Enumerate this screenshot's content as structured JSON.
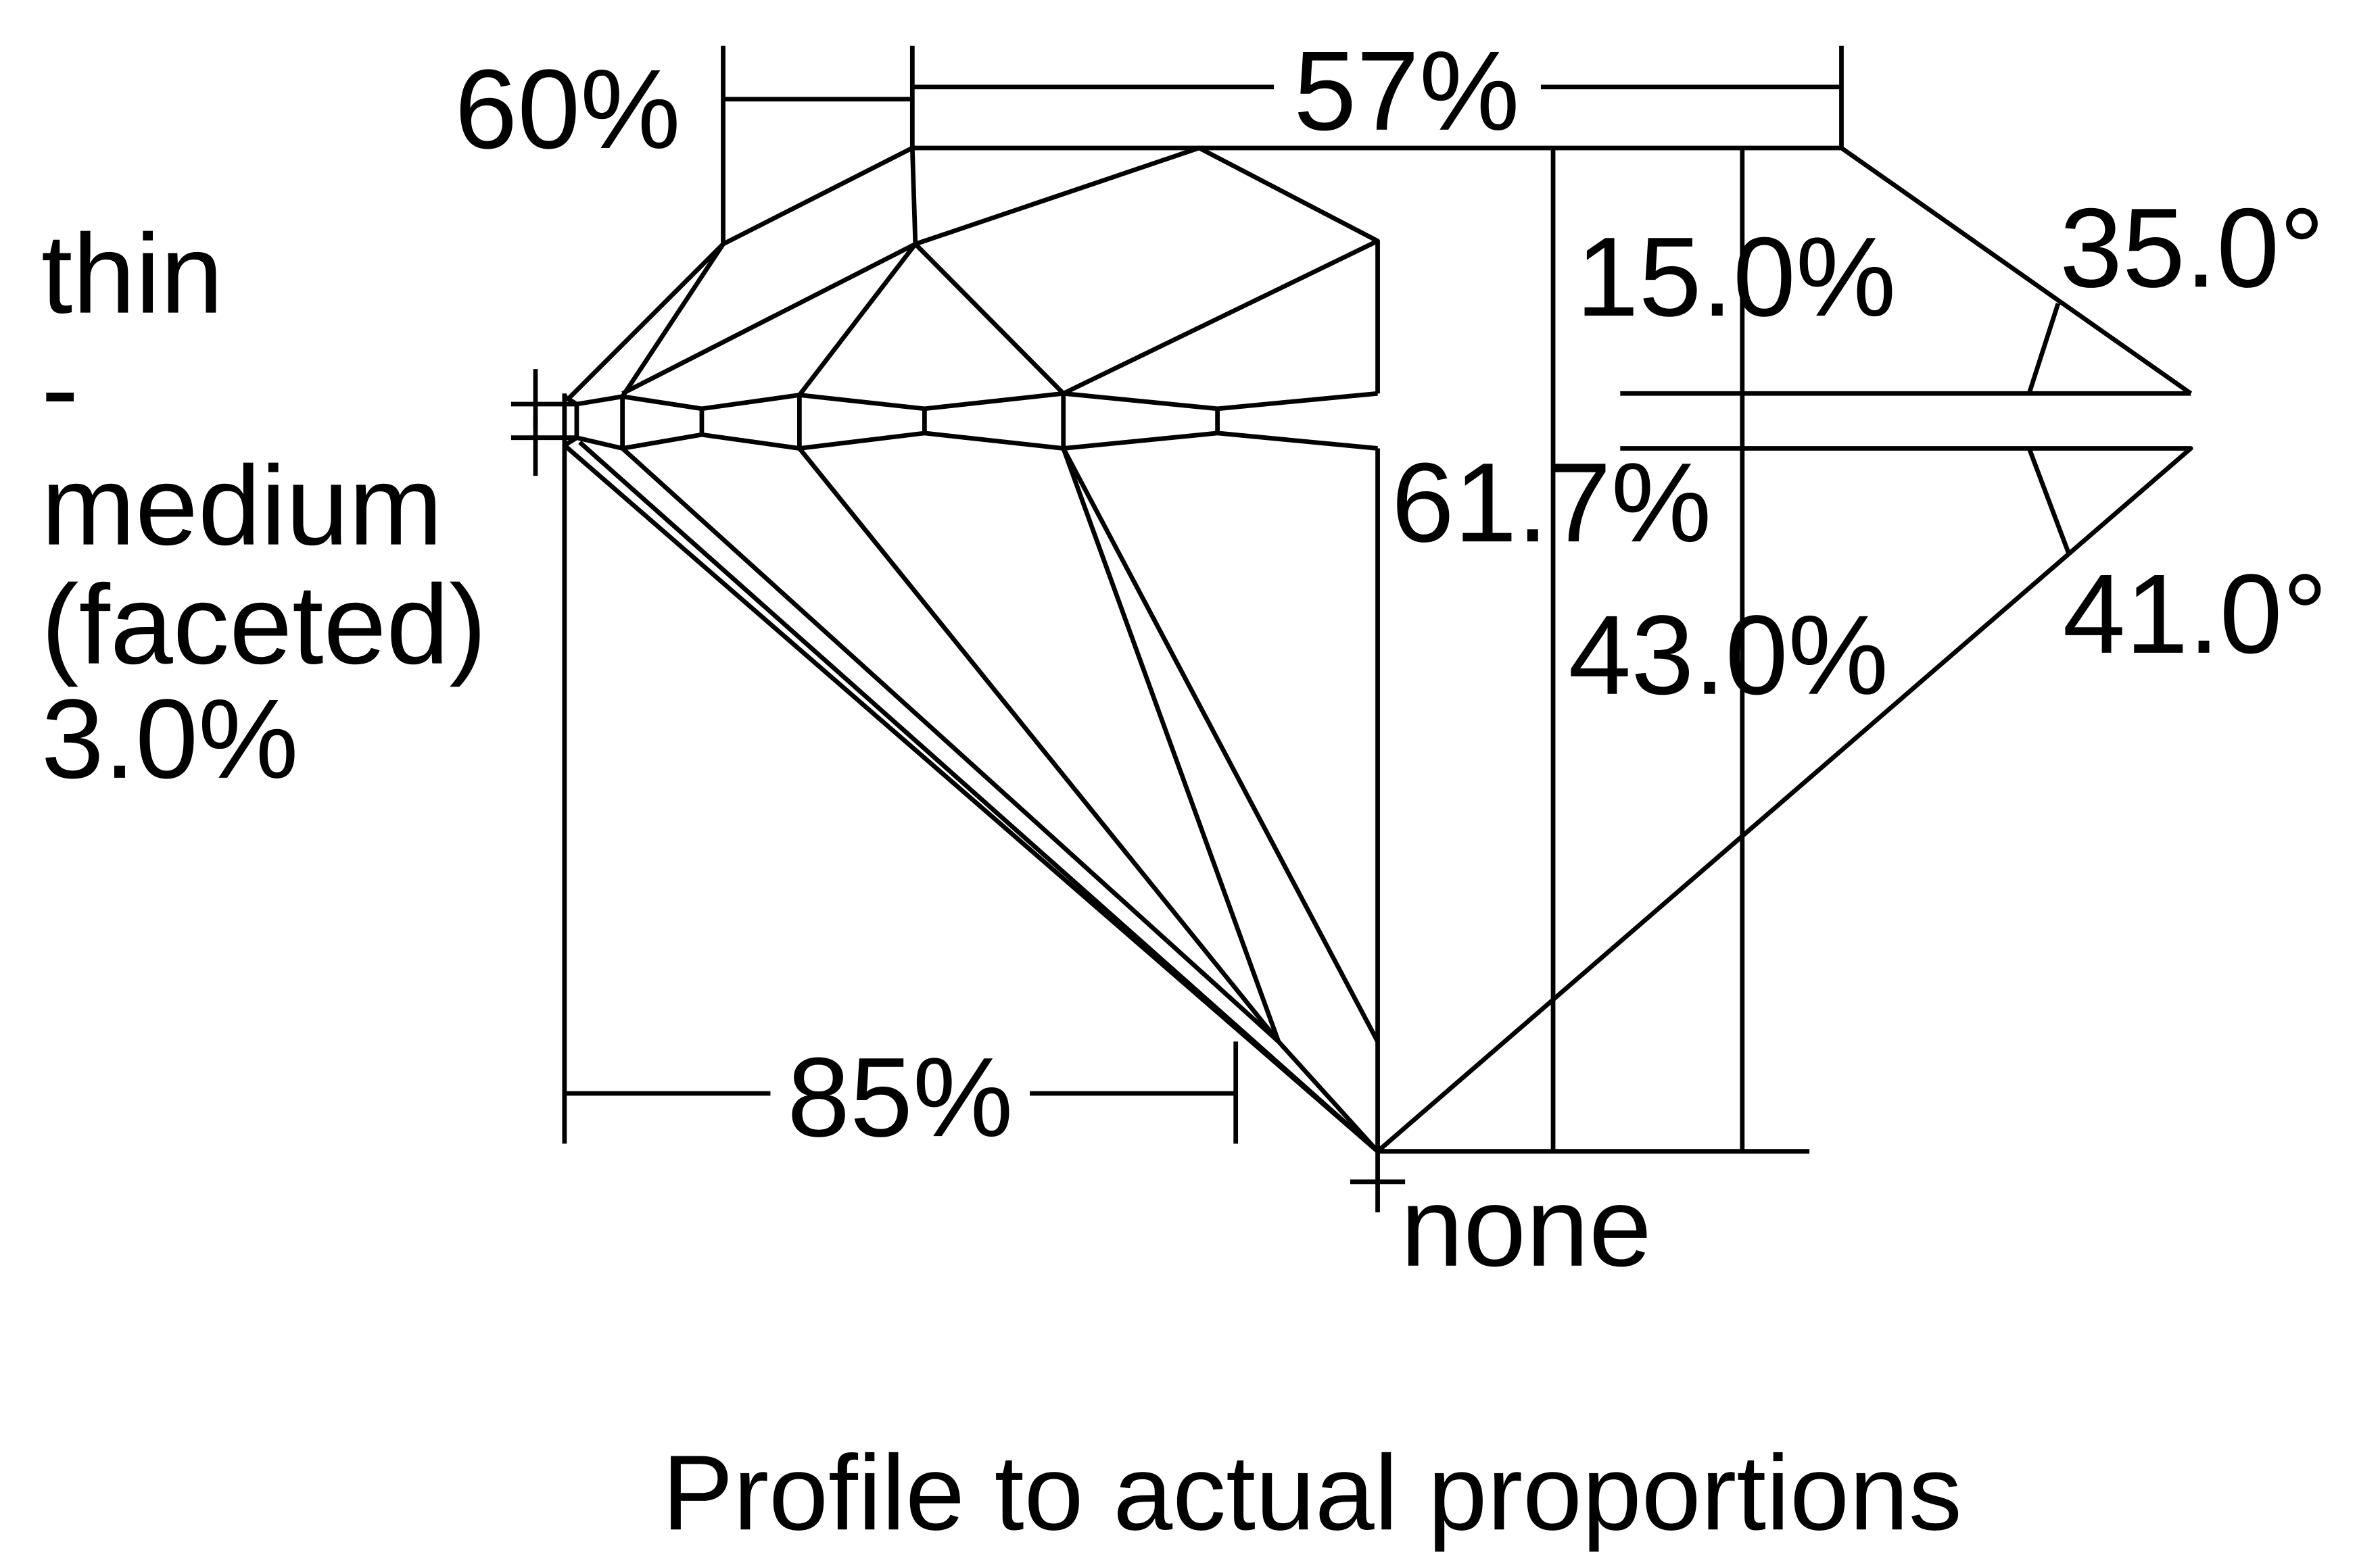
{
  "diagram": {
    "table": "57%",
    "star_length": "60%",
    "girdle_label": "thin",
    "girdle_dash": "-",
    "girdle_label_2": "medium",
    "girdle_faceted": "(faceted)",
    "girdle_thickness": "3.0%",
    "crown_height": "15.0%",
    "crown_angle": "35.0°",
    "total_depth": "61.7%",
    "pavilion_depth": "43.0%",
    "pavilion_angle": "41.0°",
    "lower_half": "85%",
    "culet": "none"
  },
  "caption": "Profile to actual proportions"
}
